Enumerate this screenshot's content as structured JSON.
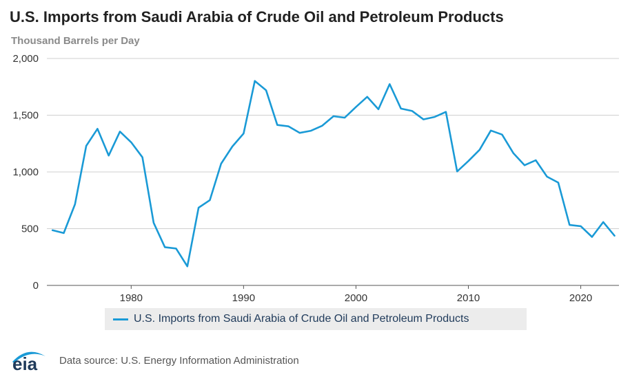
{
  "header": {
    "title": "U.S. Imports from Saudi Arabia of Crude Oil and Petroleum Products",
    "subtitle": "Thousand Barrels per Day"
  },
  "logo": {
    "text": "eia"
  },
  "footer": {
    "source": "Data source: U.S. Energy Information Administration"
  },
  "colors": {
    "line": "#1a9ad6",
    "grid": "#cfcfcf",
    "axis": "#555555"
  },
  "chart_data": {
    "type": "line",
    "title": "U.S. Imports from Saudi Arabia of Crude Oil and Petroleum Products",
    "subtitle": "Thousand Barrels per Day",
    "xlabel": "",
    "ylabel": "",
    "xlim": [
      1972.5,
      2023.4
    ],
    "ylim": [
      0,
      2000
    ],
    "yticks": [
      0,
      500,
      1000,
      1500,
      2000
    ],
    "ytick_labels": [
      "0",
      "500",
      "1,000",
      "1,500",
      "2,000"
    ],
    "xticks": [
      1980,
      1990,
      2000,
      2010,
      2020
    ],
    "xtick_labels": [
      "1980",
      "1990",
      "2000",
      "2010",
      "2020"
    ],
    "grid": true,
    "legend_position": "bottom",
    "series": [
      {
        "name": "U.S. Imports from Saudi Arabia of Crude Oil and Petroleum Products",
        "color": "#1a9ad6",
        "x": [
          1973,
          1974,
          1975,
          1976,
          1977,
          1978,
          1979,
          1980,
          1981,
          1982,
          1983,
          1984,
          1985,
          1986,
          1987,
          1988,
          1989,
          1990,
          1991,
          1992,
          1993,
          1994,
          1995,
          1996,
          1997,
          1998,
          1999,
          2000,
          2001,
          2002,
          2003,
          2004,
          2005,
          2006,
          2007,
          2008,
          2009,
          2010,
          2011,
          2012,
          2013,
          2014,
          2015,
          2016,
          2017,
          2018,
          2019,
          2020,
          2021,
          2022,
          2023
        ],
        "values": [
          486,
          461,
          715,
          1230,
          1380,
          1144,
          1356,
          1261,
          1129,
          552,
          337,
          325,
          168,
          685,
          751,
          1073,
          1224,
          1339,
          1802,
          1720,
          1414,
          1402,
          1344,
          1363,
          1407,
          1491,
          1478,
          1572,
          1662,
          1552,
          1774,
          1558,
          1537,
          1463,
          1485,
          1529,
          1004,
          1096,
          1195,
          1365,
          1329,
          1166,
          1059,
          1103,
          958,
          906,
          533,
          522,
          427,
          558,
          438
        ]
      }
    ]
  }
}
